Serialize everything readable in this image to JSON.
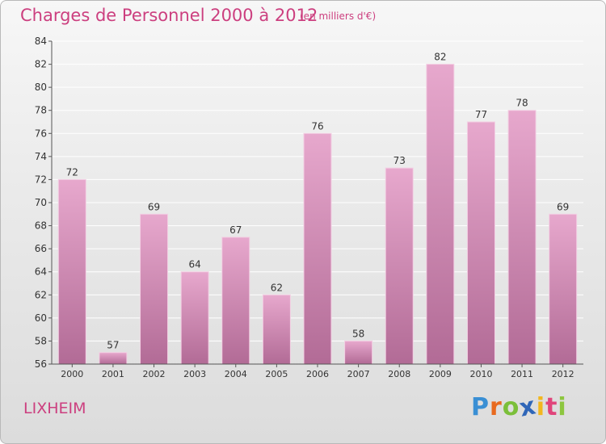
{
  "header": {
    "title": "Charges de Personnel 2000 à 2012",
    "subtitle": "(en milliers d'€)"
  },
  "footer": {
    "town": "LIXHEIM",
    "brand": "Proxiti",
    "brand_letters": [
      {
        "ch": "P",
        "color": "#3a8fd4"
      },
      {
        "ch": "r",
        "color": "#e86a1f"
      },
      {
        "ch": "o",
        "color": "#7bbf3a"
      },
      {
        "ch": "x",
        "color": "#2f66b8"
      },
      {
        "ch": "i",
        "color": "#f2b71e"
      },
      {
        "ch": "t",
        "color": "#e0457b"
      },
      {
        "ch": "i",
        "color": "#8dc63f"
      }
    ]
  },
  "colors": {
    "bar_top": "#e7a8cd",
    "bar_bottom": "#b26b96",
    "accent": "#cc3f7f",
    "grid": "#ffffff",
    "text": "#333333"
  },
  "chart_data": {
    "type": "bar",
    "title": "Charges de Personnel 2000 à 2012",
    "subtitle": "(en milliers d'€)",
    "categories": [
      "2000",
      "2001",
      "2002",
      "2003",
      "2004",
      "2005",
      "2006",
      "2007",
      "2008",
      "2009",
      "2010",
      "2011",
      "2012"
    ],
    "values": [
      72,
      57,
      69,
      64,
      67,
      62,
      76,
      58,
      73,
      82,
      77,
      78,
      69
    ],
    "ylim": [
      56,
      84
    ],
    "yticks": [
      56,
      58,
      60,
      62,
      64,
      66,
      68,
      70,
      72,
      74,
      76,
      78,
      80,
      82,
      84
    ],
    "grid": true,
    "legend": "none"
  }
}
